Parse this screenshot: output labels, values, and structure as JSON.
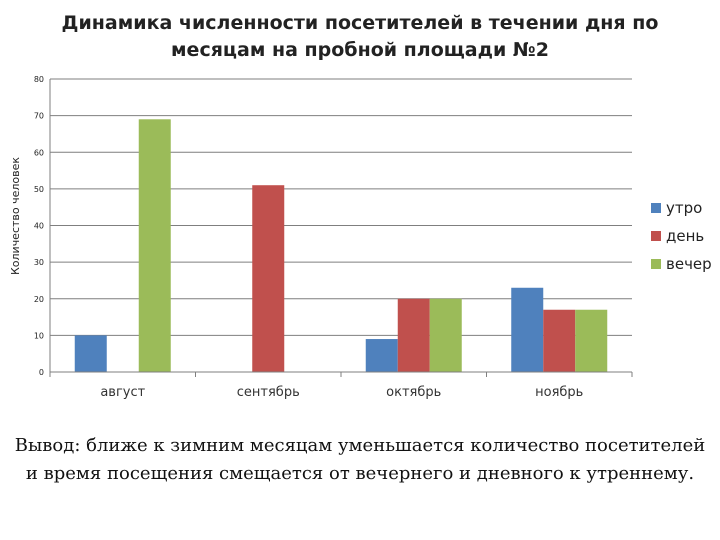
{
  "chart_data": {
    "type": "bar",
    "title_lines": [
      "Динамика численности  посетителей в течении дня по",
      "месяцам на пробной площади №2"
    ],
    "ylabel": "Количество человек",
    "xlabel": "",
    "ylim": [
      0,
      80
    ],
    "yticks": [
      "0",
      "10",
      "20",
      "30",
      "40",
      "50",
      "60",
      "70",
      "80"
    ],
    "categories": [
      "август",
      "сентябрь",
      "октябрь",
      "ноябрь"
    ],
    "series": [
      {
        "name": "утро",
        "color": "#4f81bd",
        "values": [
          10,
          0,
          9,
          23
        ]
      },
      {
        "name": "день",
        "color": "#c0504d",
        "values": [
          0,
          51,
          20,
          17
        ]
      },
      {
        "name": "вечер",
        "color": "#9bbb59",
        "values": [
          69,
          0,
          20,
          17
        ]
      }
    ],
    "grid": true,
    "legend_position": "right"
  },
  "conclusion": "Вывод: ближе к зимним месяцам уменьшается количество посетителей и время посещения смещается от вечернего и дневного к утреннему."
}
